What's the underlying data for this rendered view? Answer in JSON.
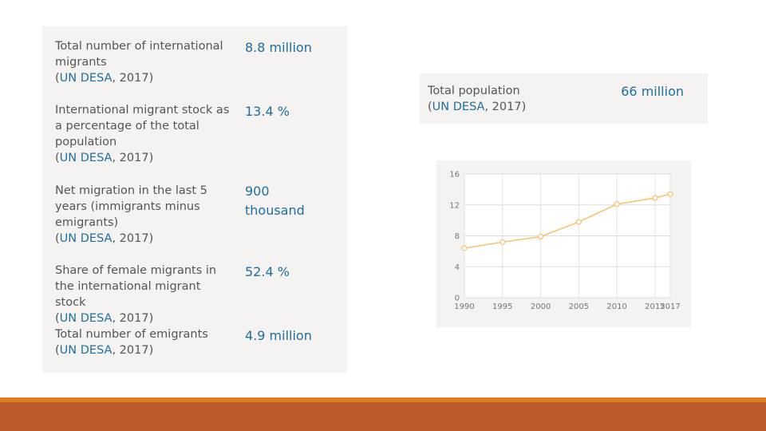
{
  "left_panel": {
    "stats": [
      {
        "label": "Total number of international migrants",
        "value": "8.8 million",
        "source": "UN DESA",
        "year": ", 2017)"
      },
      {
        "label": "International migrant stock as a percentage of the total population",
        "value": "13.4 %",
        "source": "UN DESA",
        "year": ", 2017)"
      },
      {
        "label": "Net migration in the last 5 years (immigrants minus emigrants)",
        "value": "900 thousand",
        "source": "UN DESA",
        "year": ", 2017)"
      },
      {
        "label": "Share of female migrants in the international migrant stock",
        "value": "52.4 %",
        "source": "UN DESA",
        "year": ", 2017)"
      },
      {
        "label": "Total number of emigrants",
        "value": "4.9 million",
        "source": "UN DESA",
        "year": ", 2017)"
      }
    ]
  },
  "population": {
    "label": "Total population",
    "value": "66 million",
    "source": "UN DESA",
    "year": ", 2017)"
  },
  "chart_data": {
    "type": "line",
    "x": [
      1990,
      1995,
      2000,
      2005,
      2010,
      2015,
      2017
    ],
    "series": [
      {
        "values": [
          6.4,
          7.2,
          7.9,
          9.8,
          12.1,
          12.9,
          13.4
        ]
      }
    ],
    "x_tick_labels": [
      "1990",
      "1995",
      "2000",
      "2005",
      "2010",
      "2015",
      "2017"
    ],
    "y_ticks": [
      0,
      4,
      8,
      12,
      16
    ],
    "ylim": [
      0,
      16
    ],
    "xlim": [
      1990,
      2017
    ],
    "grid": true,
    "line_color": "#f5c26b",
    "title": "",
    "xlabel": "",
    "ylabel": ""
  },
  "colors": {
    "accent": "#1f6f9f",
    "stripe_top": "#e07a22",
    "stripe_bottom": "#bb5a2a"
  }
}
